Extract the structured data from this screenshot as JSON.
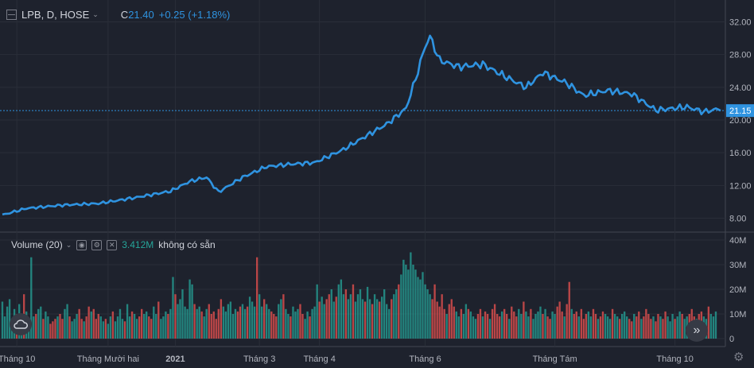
{
  "legend": {
    "symbol": "LPB, D, HOSE",
    "close_prefix": "C",
    "close": "21.40",
    "change": "+0.25 (+1.18%)"
  },
  "volume_legend": {
    "title": "Volume (20)",
    "value": "3.412M",
    "status": "không có sẵn"
  },
  "icons": {
    "symbol": "chart-square-icon",
    "chevron": "chevron-down-icon",
    "eye": "eye-icon",
    "settings": "gear-icon",
    "close": "close-icon",
    "cloud": "cloud-icon",
    "scroll": "double-chevron-right-icon"
  },
  "colors": {
    "background": "#1e222d",
    "grid": "#2a2e39",
    "price_line": "#2f93e0",
    "vol_up": "#26a69a",
    "vol_down": "#ef5350"
  },
  "chart_data": [
    {
      "type": "line",
      "title": "LPB, D, HOSE",
      "y_ticks": [
        "32.00",
        "28.00",
        "24.00",
        "20.00",
        "16.00",
        "12.00",
        "8.00"
      ],
      "ylim": [
        6.5,
        33.5
      ],
      "last_price_label": "21.15",
      "last_price": 21.15,
      "x_labels": [
        "Tháng 10",
        "Tháng Mười hai",
        "2021",
        "Tháng 3",
        "Tháng 4",
        "Tháng 6",
        "Tháng Tám",
        "Tháng 10"
      ],
      "x_label_index": [
        6,
        44,
        72,
        107,
        132,
        176,
        230,
        280
      ],
      "n_points": 300,
      "keypoints": [
        [
          0,
          8.4
        ],
        [
          10,
          9.2
        ],
        [
          25,
          9.6
        ],
        [
          40,
          9.8
        ],
        [
          55,
          10.5
        ],
        [
          70,
          11.3
        ],
        [
          78,
          12.5
        ],
        [
          85,
          13.0
        ],
        [
          90,
          11.2
        ],
        [
          100,
          13.0
        ],
        [
          110,
          14.3
        ],
        [
          120,
          14.6
        ],
        [
          130,
          14.8
        ],
        [
          142,
          16.4
        ],
        [
          150,
          17.8
        ],
        [
          160,
          19.5
        ],
        [
          168,
          21.4
        ],
        [
          172,
          25.0
        ],
        [
          176,
          29.0
        ],
        [
          178,
          30.2
        ],
        [
          182,
          27.3
        ],
        [
          190,
          26.5
        ],
        [
          200,
          26.8
        ],
        [
          210,
          25.2
        ],
        [
          218,
          24.0
        ],
        [
          225,
          25.8
        ],
        [
          235,
          24.5
        ],
        [
          242,
          23.0
        ],
        [
          252,
          23.6
        ],
        [
          262,
          23.2
        ],
        [
          272,
          21.2
        ],
        [
          285,
          21.6
        ],
        [
          292,
          21.0
        ],
        [
          299,
          21.4
        ]
      ],
      "grid": true
    },
    {
      "type": "bar",
      "title": "Volume (20)",
      "y_ticks": [
        "40M",
        "30M",
        "20M",
        "10M",
        "0"
      ],
      "ylim": [
        0,
        40000000
      ],
      "values_m": [
        15,
        9,
        13,
        16,
        8,
        12,
        10,
        14,
        7,
        18,
        11,
        6,
        33,
        9,
        10,
        12,
        13,
        8,
        11,
        9,
        6,
        7,
        8,
        9,
        10,
        8,
        12,
        14,
        9,
        7,
        8,
        10,
        12,
        8,
        7,
        9,
        13,
        11,
        12,
        8,
        10,
        9,
        7,
        8,
        6,
        9,
        11,
        7,
        9,
        12,
        8,
        7,
        14,
        9,
        11,
        10,
        8,
        9,
        12,
        10,
        11,
        9,
        8,
        13,
        10,
        15,
        8,
        9,
        11,
        10,
        12,
        25,
        18,
        14,
        16,
        20,
        13,
        12,
        24,
        22,
        14,
        12,
        13,
        11,
        9,
        12,
        14,
        10,
        11,
        8,
        12,
        16,
        13,
        11,
        14,
        15,
        10,
        12,
        11,
        13,
        14,
        12,
        13,
        17,
        15,
        13,
        33,
        18,
        13,
        16,
        14,
        12,
        11,
        10,
        9,
        14,
        16,
        18,
        12,
        10,
        9,
        13,
        11,
        12,
        14,
        10,
        8,
        11,
        9,
        12,
        13,
        22,
        15,
        17,
        14,
        16,
        18,
        20,
        15,
        17,
        22,
        24,
        18,
        20,
        16,
        18,
        22,
        15,
        18,
        20,
        16,
        15,
        21,
        16,
        14,
        18,
        16,
        15,
        17,
        20,
        14,
        12,
        16,
        18,
        20,
        22,
        26,
        32,
        30,
        28,
        35,
        30,
        28,
        25,
        24,
        27,
        22,
        20,
        18,
        16,
        22,
        15,
        13,
        18,
        12,
        10,
        14,
        16,
        13,
        11,
        9,
        12,
        10,
        14,
        12,
        11,
        9,
        8,
        10,
        12,
        9,
        11,
        10,
        8,
        12,
        14,
        10,
        9,
        11,
        12,
        10,
        8,
        13,
        11,
        9,
        12,
        10,
        15,
        11,
        9,
        12,
        8,
        10,
        11,
        13,
        10,
        12,
        9,
        8,
        11,
        10,
        13,
        15,
        11,
        9,
        14,
        23,
        12,
        10,
        11,
        9,
        12,
        8,
        10,
        11,
        9,
        12,
        10,
        8,
        9,
        11,
        10,
        9,
        8,
        12,
        10,
        9,
        8,
        10,
        11,
        9,
        8,
        7,
        10,
        9,
        11,
        8,
        9,
        12,
        10,
        8,
        9,
        7,
        10,
        9,
        8,
        11,
        9,
        7,
        10,
        8,
        9,
        11,
        10,
        8,
        9,
        10,
        12,
        9,
        8,
        10,
        11,
        9,
        8,
        13,
        10,
        9,
        11
      ],
      "grid": true
    }
  ]
}
